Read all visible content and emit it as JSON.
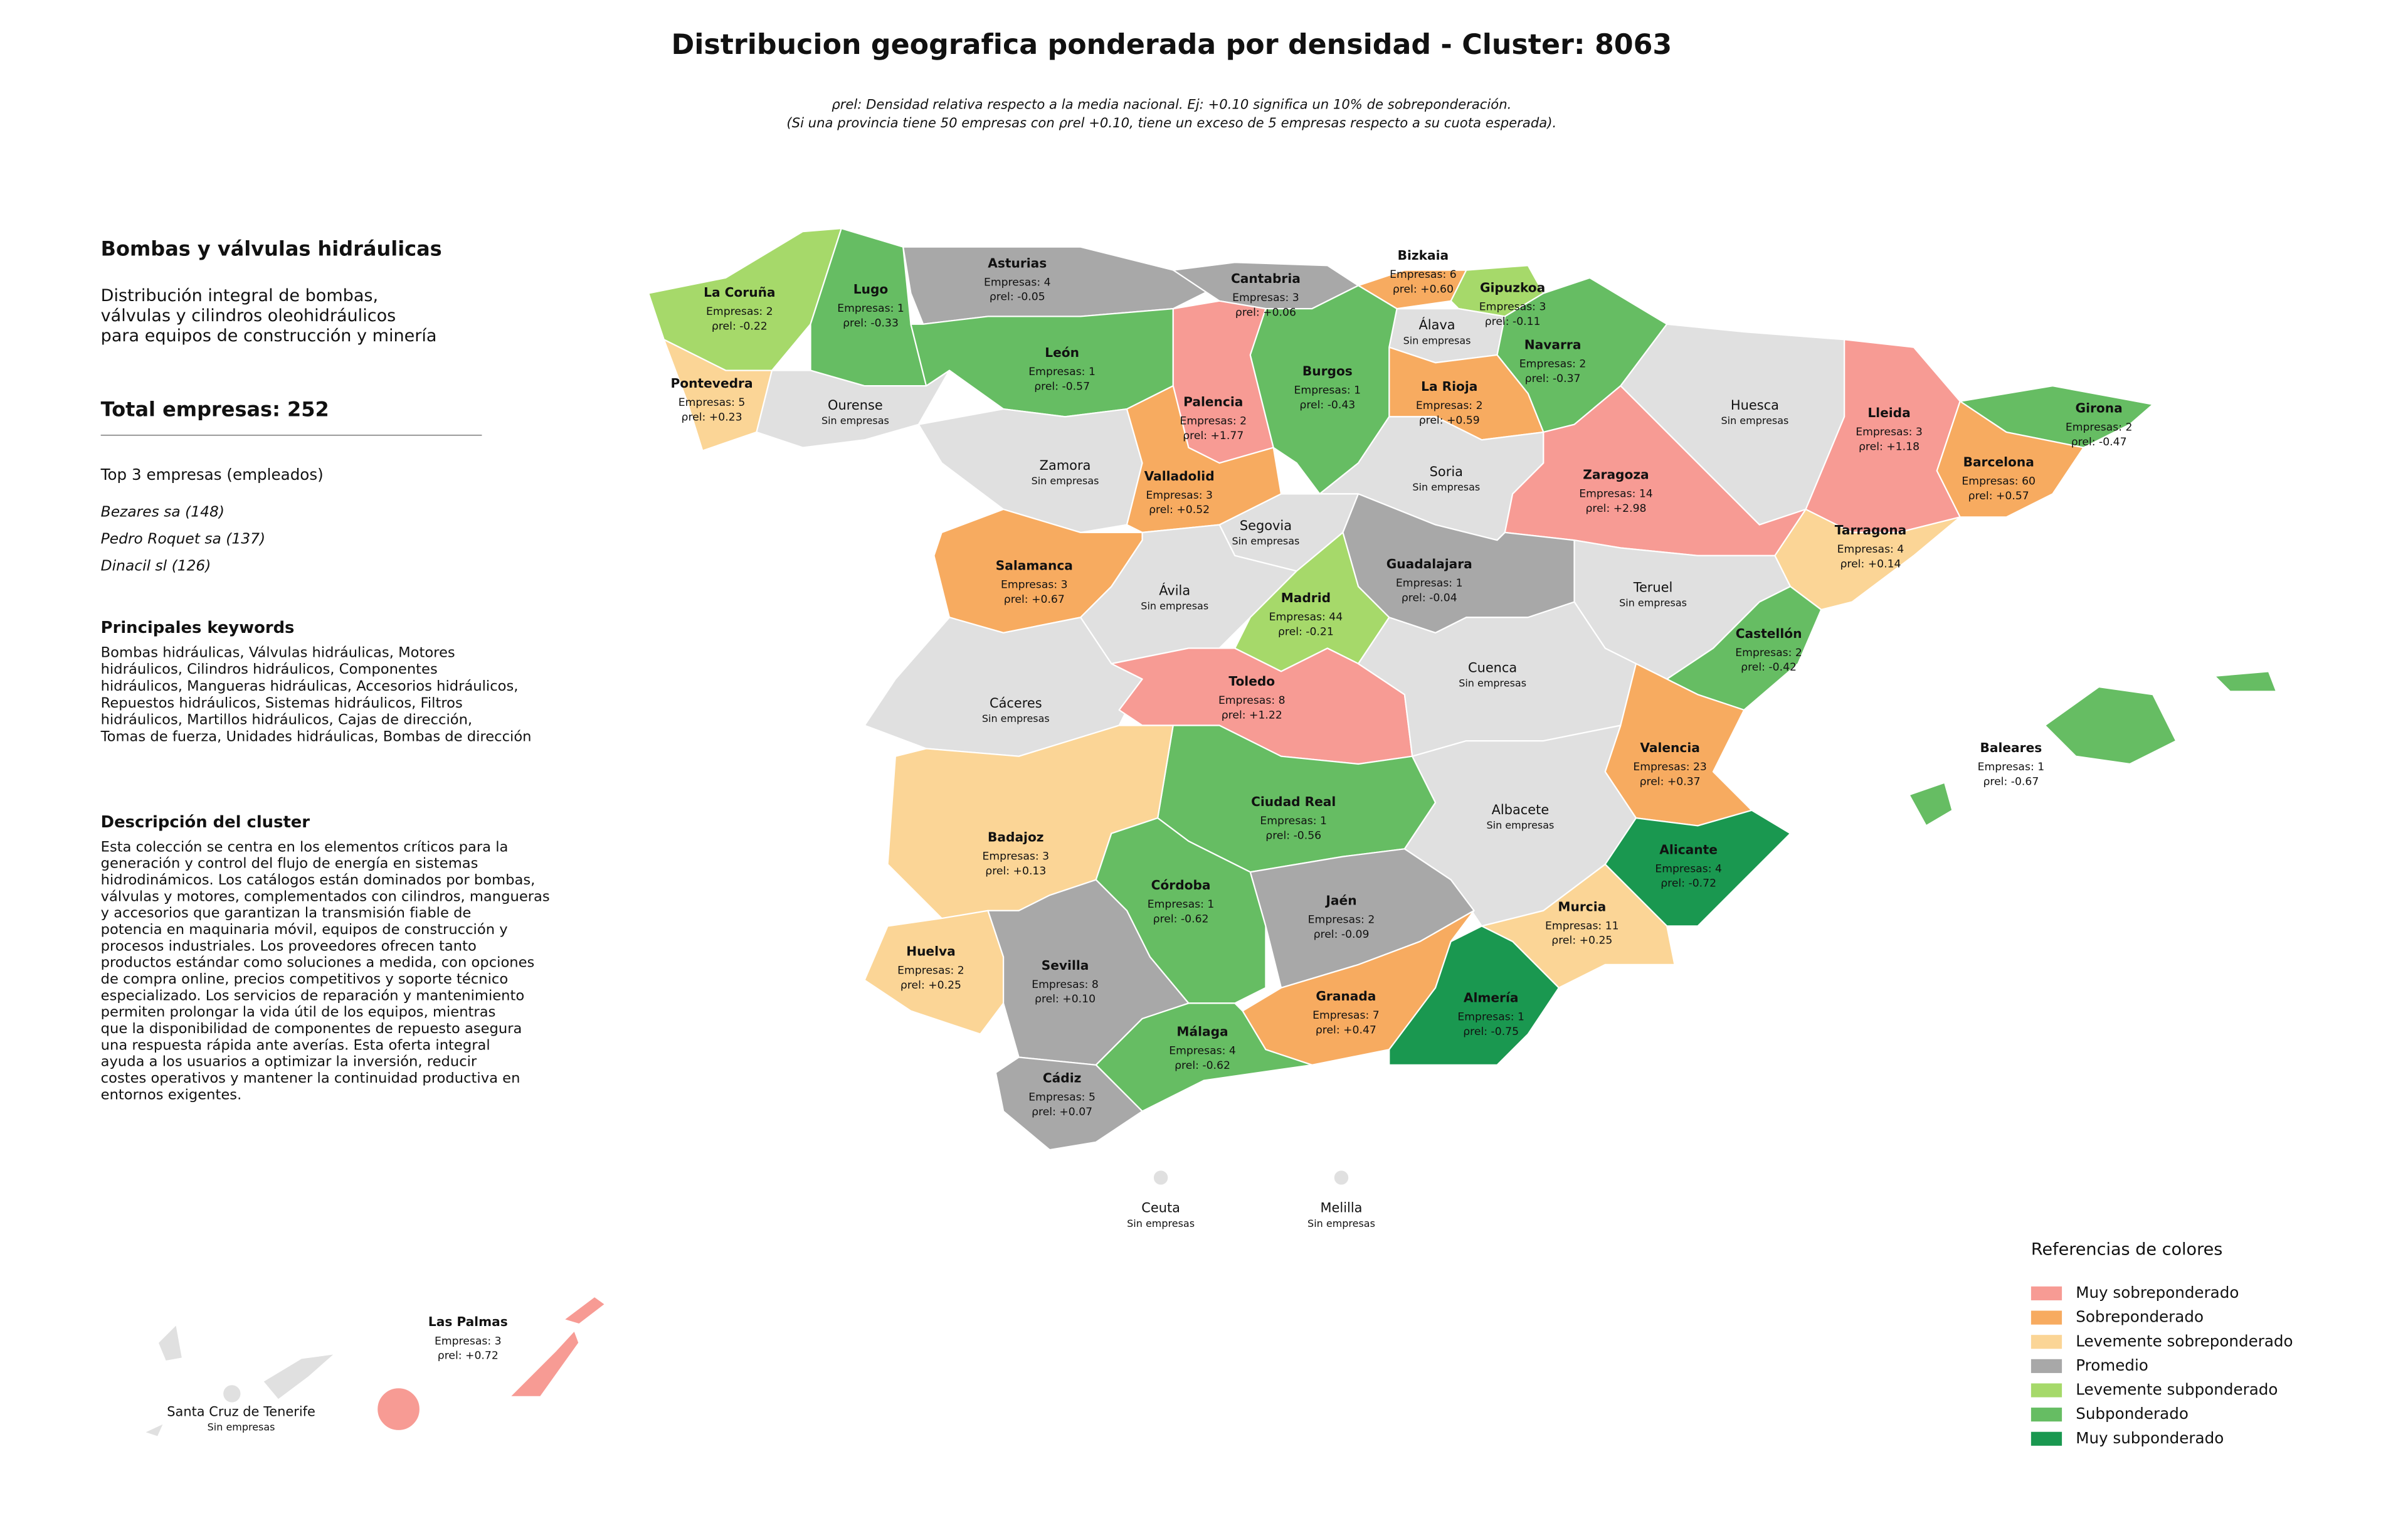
{
  "header": {
    "title": "Distribucion geografica ponderada por densidad - Cluster: 8063",
    "notes": [
      "ρrel: Densidad relativa respecto a la media nacional. Ej: +0.10 significa un 10% de sobreponderación.",
      "(Si una provincia tiene 50 empresas con ρrel +0.10, tiene un exceso de 5 empresas respecto a su cuota esperada)."
    ]
  },
  "panel": {
    "title": "Bombas y válvulas hidráulicas",
    "description": [
      "Distribución integral de bombas,",
      "válvulas y cilindros oleohidráulicos",
      "para equipos de construcción y minería"
    ],
    "total": "Total empresas: 252",
    "top_title": "Top 3 empresas (empleados)",
    "top": [
      "Bezares sa (148)",
      "Pedro Roquet sa (137)",
      "Dinacil sl (126)"
    ],
    "keywords_title": "Principales keywords",
    "keywords": [
      "Bombas hidráulicas, Válvulas hidráulicas, Motores",
      "hidráulicos, Cilindros hidráulicos, Componentes",
      "hidráulicos, Mangueras hidráulicas, Accesorios hidráulicos,",
      "Repuestos hidráulicos, Sistemas hidráulicos, Filtros",
      "hidráulicos, Martillos hidráulicos, Cajas de dirección,",
      "Tomas de fuerza, Unidades hidráulicas, Bombas de dirección"
    ],
    "cluster_title": "Descripción del cluster",
    "cluster_text": [
      "Esta colección se centra en los elementos críticos para la",
      "generación y control del flujo de energía en sistemas",
      "hidrodinámicos. Los catálogos están dominados por bombas,",
      "válvulas y motores, complementados con cilindros, mangueras",
      "y accesorios que garantizan la transmisión fiable de",
      "potencia en maquinaria móvil, equipos de construcción y",
      "procesos industriales. Los proveedores ofrecen tanto",
      "productos estándar como soluciones a medida, con opciones",
      "de compra online, precios competitivos y soporte técnico",
      "especializado. Los servicios de reparación y mantenimiento",
      "permiten prolongar la vida útil de los equipos, mientras",
      "que la disponibilidad de componentes de repuesto asegura",
      "una respuesta rápida ante averías. Esta oferta integral",
      "ayuda a los usuarios a optimizar la inversión, reducir",
      "costes operativos y mantener la continuidad productiva en",
      "entornos exigentes."
    ]
  },
  "legend": {
    "title": "Referencias de colores",
    "items": [
      {
        "name": "Muy sobreponderado",
        "color": "#f79b94"
      },
      {
        "name": "Sobreponderado",
        "color": "#f7ab60"
      },
      {
        "name": "Levemente sobreponderado",
        "color": "#fbd596"
      },
      {
        "name": "Promedio",
        "color": "#a8a8a8"
      },
      {
        "name": "Levemente subponderado",
        "color": "#a6d96a"
      },
      {
        "name": "Subponderado",
        "color": "#66bd63"
      },
      {
        "name": "Muy subponderado",
        "color": "#1a9850"
      }
    ]
  },
  "provinces": [
    {
      "name": "La Coruña",
      "lines": [
        "Empresas: 2",
        "ρrel: -0.22"
      ],
      "color": "#a6d96a"
    },
    {
      "name": "Lugo",
      "lines": [
        "Empresas: 1",
        "ρrel: -0.33"
      ],
      "color": "#66bd63"
    },
    {
      "name": "Asturias",
      "lines": [
        "Empresas: 4",
        "ρrel: -0.05"
      ],
      "color": "#a8a8a8"
    },
    {
      "name": "Cantabria",
      "lines": [
        "Empresas: 3",
        "ρrel: +0.06"
      ],
      "color": "#a8a8a8"
    },
    {
      "name": "Bizkaia",
      "lines": [
        "Empresas: 6",
        "ρrel: +0.60"
      ],
      "color": "#f7ab60"
    },
    {
      "name": "Gipuzkoa",
      "lines": [
        "Empresas: 3",
        "ρrel: -0.11"
      ],
      "color": "#a6d96a"
    },
    {
      "name": "Álava",
      "lines": [
        "Sin empresas"
      ],
      "color": "#e0e0e0"
    },
    {
      "name": "Navarra",
      "lines": [
        "Empresas: 2",
        "ρrel: -0.37"
      ],
      "color": "#66bd63"
    },
    {
      "name": "La Rioja",
      "lines": [
        "Empresas: 2",
        "ρrel: +0.59"
      ],
      "color": "#f7ab60"
    },
    {
      "name": "Pontevedra",
      "lines": [
        "Empresas: 5",
        "ρrel: +0.23"
      ],
      "color": "#fbd596"
    },
    {
      "name": "Ourense",
      "lines": [
        "Sin empresas"
      ],
      "color": "#e0e0e0"
    },
    {
      "name": "León",
      "lines": [
        "Empresas: 1",
        "ρrel: -0.57"
      ],
      "color": "#66bd63"
    },
    {
      "name": "Palencia",
      "lines": [
        "Empresas: 2",
        "ρrel: +1.77"
      ],
      "color": "#f79b94"
    },
    {
      "name": "Burgos",
      "lines": [
        "Empresas: 1",
        "ρrel: -0.43"
      ],
      "color": "#66bd63"
    },
    {
      "name": "Huesca",
      "lines": [
        "Sin empresas"
      ],
      "color": "#e0e0e0"
    },
    {
      "name": "Lleida",
      "lines": [
        "Empresas: 3",
        "ρrel: +1.18"
      ],
      "color": "#f79b94"
    },
    {
      "name": "Girona",
      "lines": [
        "Empresas: 2",
        "ρrel: -0.47"
      ],
      "color": "#66bd63"
    },
    {
      "name": "Barcelona",
      "lines": [
        "Empresas: 60",
        "ρrel: +0.57"
      ],
      "color": "#f7ab60"
    },
    {
      "name": "Zamora",
      "lines": [
        "Sin empresas"
      ],
      "color": "#e0e0e0"
    },
    {
      "name": "Valladolid",
      "lines": [
        "Empresas: 3",
        "ρrel: +0.52"
      ],
      "color": "#f7ab60"
    },
    {
      "name": "Soria",
      "lines": [
        "Sin empresas"
      ],
      "color": "#e0e0e0"
    },
    {
      "name": "Zaragoza",
      "lines": [
        "Empresas: 14",
        "ρrel: +2.98"
      ],
      "color": "#f79b94"
    },
    {
      "name": "Segovia",
      "lines": [
        "Sin empresas"
      ],
      "color": "#e0e0e0"
    },
    {
      "name": "Tarragona",
      "lines": [
        "Empresas: 4",
        "ρrel: +0.14"
      ],
      "color": "#fbd596"
    },
    {
      "name": "Salamanca",
      "lines": [
        "Empresas: 3",
        "ρrel: +0.67"
      ],
      "color": "#f7ab60"
    },
    {
      "name": "Guadalajara",
      "lines": [
        "Empresas: 1",
        "ρrel: -0.04"
      ],
      "color": "#a8a8a8"
    },
    {
      "name": "Ávila",
      "lines": [
        "Sin empresas"
      ],
      "color": "#e0e0e0"
    },
    {
      "name": "Madrid",
      "lines": [
        "Empresas: 44",
        "ρrel: -0.21"
      ],
      "color": "#a6d96a"
    },
    {
      "name": "Teruel",
      "lines": [
        "Sin empresas"
      ],
      "color": "#e0e0e0"
    },
    {
      "name": "Castellón",
      "lines": [
        "Empresas: 2",
        "ρrel: -0.42"
      ],
      "color": "#66bd63"
    },
    {
      "name": "Cáceres",
      "lines": [
        "Sin empresas"
      ],
      "color": "#e0e0e0"
    },
    {
      "name": "Toledo",
      "lines": [
        "Empresas: 8",
        "ρrel: +1.22"
      ],
      "color": "#f79b94"
    },
    {
      "name": "Cuenca",
      "lines": [
        "Sin empresas"
      ],
      "color": "#e0e0e0"
    },
    {
      "name": "Valencia",
      "lines": [
        "Empresas: 23",
        "ρrel: +0.37"
      ],
      "color": "#f7ab60"
    },
    {
      "name": "Baleares",
      "lines": [
        "Empresas: 1",
        "ρrel: -0.67"
      ],
      "color": "#66bd63"
    },
    {
      "name": "Ciudad Real",
      "lines": [
        "Empresas: 1",
        "ρrel: -0.56"
      ],
      "color": "#66bd63"
    },
    {
      "name": "Albacete",
      "lines": [
        "Sin empresas"
      ],
      "color": "#e0e0e0"
    },
    {
      "name": "Badajoz",
      "lines": [
        "Empresas: 3",
        "ρrel: +0.13"
      ],
      "color": "#fbd596"
    },
    {
      "name": "Alicante",
      "lines": [
        "Empresas: 4",
        "ρrel: -0.72"
      ],
      "color": "#1a9850"
    },
    {
      "name": "Córdoba",
      "lines": [
        "Empresas: 1",
        "ρrel: -0.62"
      ],
      "color": "#66bd63"
    },
    {
      "name": "Jaén",
      "lines": [
        "Empresas: 2",
        "ρrel: -0.09"
      ],
      "color": "#a8a8a8"
    },
    {
      "name": "Murcia",
      "lines": [
        "Empresas: 11",
        "ρrel: +0.25"
      ],
      "color": "#fbd596"
    },
    {
      "name": "Huelva",
      "lines": [
        "Empresas: 2",
        "ρrel: +0.25"
      ],
      "color": "#fbd596"
    },
    {
      "name": "Sevilla",
      "lines": [
        "Empresas: 8",
        "ρrel: +0.10"
      ],
      "color": "#a8a8a8"
    },
    {
      "name": "Granada",
      "lines": [
        "Empresas: 7",
        "ρrel: +0.47"
      ],
      "color": "#f7ab60"
    },
    {
      "name": "Almería",
      "lines": [
        "Empresas: 1",
        "ρrel: -0.75"
      ],
      "color": "#1a9850"
    },
    {
      "name": "Málaga",
      "lines": [
        "Empresas: 4",
        "ρrel: -0.62"
      ],
      "color": "#66bd63"
    },
    {
      "name": "Cádiz",
      "lines": [
        "Empresas: 5",
        "ρrel: +0.07"
      ],
      "color": "#a8a8a8"
    },
    {
      "name": "Ceuta",
      "lines": [
        "Sin empresas"
      ],
      "color": "#e0e0e0"
    },
    {
      "name": "Melilla",
      "lines": [
        "Sin empresas"
      ],
      "color": "#e0e0e0"
    },
    {
      "name": "Las Palmas",
      "lines": [
        "Empresas: 3",
        "ρrel: +0.72"
      ],
      "color": "#f79b94"
    },
    {
      "name": "Santa Cruz de Tenerife",
      "lines": [
        "Sin empresas"
      ],
      "color": "#e0e0e0"
    }
  ]
}
